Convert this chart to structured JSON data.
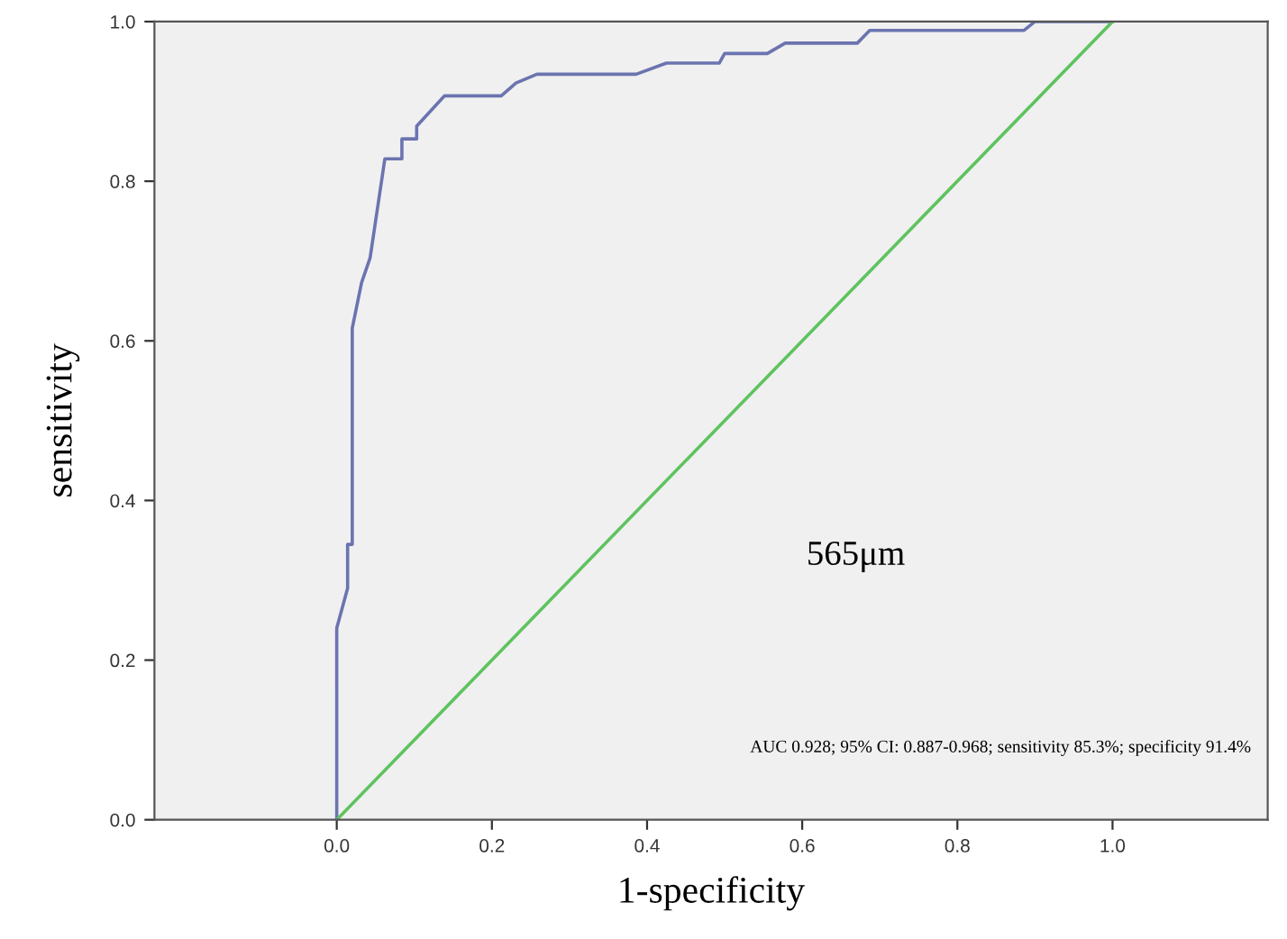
{
  "chart_data": {
    "type": "line",
    "xlabel": "1-specificity",
    "ylabel": "sensitivity",
    "series": [
      {
        "color": "#6b74b0",
        "x": [
          0,
          0,
          0.014,
          0.014,
          0.02,
          0.02,
          0.032,
          0.043,
          0.062,
          0.084,
          0.084,
          0.103,
          0.103,
          0.139,
          0.212,
          0.231,
          0.258,
          0.386,
          0.425,
          0.493,
          0.5,
          0.555,
          0.578,
          0.671,
          0.687,
          0.886,
          0.9,
          1.0
        ],
        "values": [
          0,
          0.24,
          0.29,
          0.345,
          0.345,
          0.616,
          0.673,
          0.704,
          0.828,
          0.828,
          0.853,
          0.853,
          0.869,
          0.907,
          0.907,
          0.923,
          0.934,
          0.934,
          0.948,
          0.948,
          0.96,
          0.96,
          0.973,
          0.973,
          0.989,
          0.989,
          1.0,
          1.0
        ]
      },
      {
        "color": "#5fc35f",
        "x": [
          0,
          1
        ],
        "values": [
          0,
          1
        ]
      }
    ],
    "xlim": [
      -0.235,
      1.2
    ],
    "ylim": [
      0,
      1
    ],
    "xticks": [
      {
        "value": 0,
        "label": "0.0"
      },
      {
        "value": 0.2,
        "label": "0.2"
      },
      {
        "value": 0.4,
        "label": "0.4"
      },
      {
        "value": 0.6,
        "label": "0.6"
      },
      {
        "value": 0.8,
        "label": "0.8"
      },
      {
        "value": 1.0,
        "label": "1.0"
      }
    ],
    "yticks": [
      {
        "value": 0,
        "label": "0.0"
      },
      {
        "value": 0.2,
        "label": "0.2"
      },
      {
        "value": 0.4,
        "label": "0.4"
      },
      {
        "value": 0.6,
        "label": "0.6"
      },
      {
        "value": 0.8,
        "label": "0.8"
      },
      {
        "value": 1.0,
        "label": "1.0"
      }
    ],
    "annotations": [
      "565μm",
      "AUC 0.928; 95% CI: 0.887-0.968; sensitivity 85.3%; specificity 91.4%"
    ],
    "grid": false,
    "legend": false,
    "marker": "none",
    "line_style": "solid"
  }
}
